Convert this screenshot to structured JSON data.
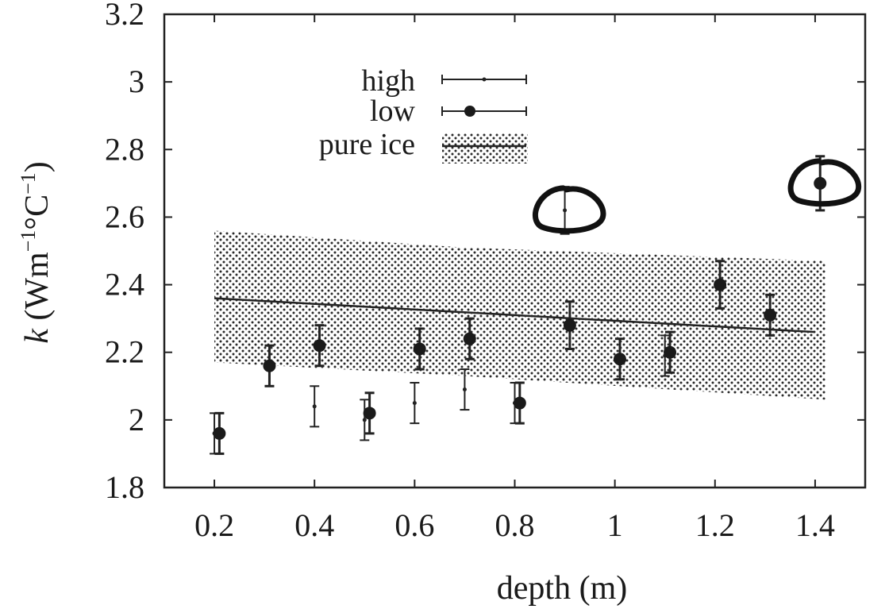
{
  "chart_data": {
    "type": "scatter",
    "xlabel": "depth (m)",
    "ylabel_parts": {
      "k": "k",
      "open": " (Wm",
      "exp1": "−1",
      "deg": "°C",
      "exp2": "−1",
      "close": ")"
    },
    "xlim": [
      0.1,
      1.5
    ],
    "ylim": [
      1.8,
      3.2
    ],
    "xticks": [
      {
        "v": 0.2,
        "label": "0.2"
      },
      {
        "v": 0.4,
        "label": "0.4"
      },
      {
        "v": 0.6,
        "label": "0.6"
      },
      {
        "v": 0.8,
        "label": "0.8"
      },
      {
        "v": 1.0,
        "label": "1"
      },
      {
        "v": 1.2,
        "label": "1.2"
      },
      {
        "v": 1.4,
        "label": "1.4"
      }
    ],
    "yticks": [
      {
        "v": 1.8,
        "label": "1.8"
      },
      {
        "v": 2.0,
        "label": "2"
      },
      {
        "v": 2.2,
        "label": "2.2"
      },
      {
        "v": 2.4,
        "label": "2.4"
      },
      {
        "v": 2.6,
        "label": "2.6"
      },
      {
        "v": 2.8,
        "label": "2.8"
      },
      {
        "v": 3.0,
        "label": "3"
      },
      {
        "v": 3.2,
        "label": "3.2"
      }
    ],
    "series": [
      {
        "name": "high",
        "marker": "small-dot",
        "points": [
          {
            "x": 0.2,
            "y": 1.96,
            "err": 0.06
          },
          {
            "x": 0.4,
            "y": 2.04,
            "err": 0.06
          },
          {
            "x": 0.5,
            "y": 2.0,
            "err": 0.06
          },
          {
            "x": 0.6,
            "y": 2.05,
            "err": 0.06
          },
          {
            "x": 0.7,
            "y": 2.09,
            "err": 0.06
          },
          {
            "x": 0.8,
            "y": 2.05,
            "err": 0.06
          },
          {
            "x": 0.9,
            "y": 2.62,
            "err": 0.07
          },
          {
            "x": 1.1,
            "y": 2.19,
            "err": 0.06
          }
        ]
      },
      {
        "name": "low",
        "marker": "filled-circle",
        "points": [
          {
            "x": 0.21,
            "y": 1.96,
            "err": 0.06
          },
          {
            "x": 0.31,
            "y": 2.16,
            "err": 0.06
          },
          {
            "x": 0.41,
            "y": 2.22,
            "err": 0.06
          },
          {
            "x": 0.51,
            "y": 2.02,
            "err": 0.06
          },
          {
            "x": 0.61,
            "y": 2.21,
            "err": 0.06
          },
          {
            "x": 0.71,
            "y": 2.24,
            "err": 0.06
          },
          {
            "x": 0.81,
            "y": 2.05,
            "err": 0.06
          },
          {
            "x": 0.91,
            "y": 2.28,
            "err": 0.07
          },
          {
            "x": 1.01,
            "y": 2.18,
            "err": 0.06
          },
          {
            "x": 1.11,
            "y": 2.2,
            "err": 0.06
          },
          {
            "x": 1.21,
            "y": 2.4,
            "err": 0.07
          },
          {
            "x": 1.31,
            "y": 2.31,
            "err": 0.06
          },
          {
            "x": 1.41,
            "y": 2.7,
            "err": 0.08
          }
        ]
      },
      {
        "name": "pure ice",
        "line": {
          "x": [
            0.2,
            1.4
          ],
          "y": [
            2.36,
            2.26
          ]
        },
        "band": [
          {
            "x": 0.2,
            "lower": 2.17,
            "upper": 2.56
          },
          {
            "x": 0.7,
            "lower": 2.13,
            "upper": 2.51
          },
          {
            "x": 1.42,
            "lower": 2.06,
            "upper": 2.47
          }
        ]
      }
    ],
    "annotations": [
      {
        "type": "hand-drawn-circle",
        "x": 0.9,
        "y": 2.62
      },
      {
        "type": "hand-drawn-circle",
        "x": 1.41,
        "y": 2.7
      }
    ],
    "legend": {
      "position": "top-center",
      "entries": [
        "high",
        "low",
        "pure ice"
      ]
    },
    "grid": false
  }
}
